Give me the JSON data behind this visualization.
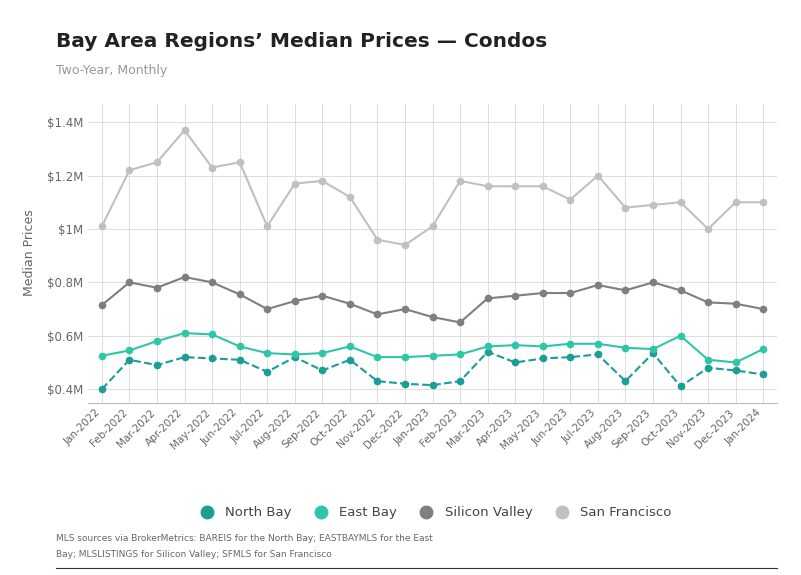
{
  "title": "Bay Area Regions’ Median Prices — Condos",
  "subtitle": "Two-Year, Monthly",
  "ylabel": "Median Prices",
  "footnote1": "MLS sources via BrokerMetrics: BAREIS for the North Bay; EASTBAYMLS for the East",
  "footnote2": "Bay; MLSLISTINGS for Silicon Valley; SFMLS for San Francisco",
  "months": [
    "Jan-2022",
    "Feb-2022",
    "Mar-2022",
    "Apr-2022",
    "May-2022",
    "Jun-2022",
    "Jul-2022",
    "Aug-2022",
    "Sep-2022",
    "Oct-2022",
    "Nov-2022",
    "Dec-2022",
    "Jan-2023",
    "Feb-2023",
    "Mar-2023",
    "Apr-2023",
    "May-2023",
    "Jun-2023",
    "Jul-2023",
    "Aug-2023",
    "Sep-2023",
    "Oct-2023",
    "Nov-2023",
    "Dec-2023",
    "Jan-2024"
  ],
  "north_bay": [
    0.4,
    0.51,
    0.49,
    0.52,
    0.515,
    0.51,
    0.465,
    0.52,
    0.47,
    0.51,
    0.43,
    0.42,
    0.415,
    0.43,
    0.54,
    0.5,
    0.515,
    0.52,
    0.53,
    0.43,
    0.535,
    0.41,
    0.48,
    0.47,
    0.455
  ],
  "east_bay": [
    0.525,
    0.545,
    0.58,
    0.61,
    0.605,
    0.56,
    0.535,
    0.53,
    0.535,
    0.56,
    0.52,
    0.52,
    0.525,
    0.53,
    0.56,
    0.565,
    0.56,
    0.57,
    0.57,
    0.555,
    0.55,
    0.6,
    0.51,
    0.5,
    0.55
  ],
  "silicon_valley": [
    0.715,
    0.8,
    0.78,
    0.82,
    0.8,
    0.755,
    0.7,
    0.73,
    0.75,
    0.72,
    0.68,
    0.7,
    0.67,
    0.65,
    0.74,
    0.75,
    0.76,
    0.76,
    0.79,
    0.77,
    0.8,
    0.77,
    0.725,
    0.72,
    0.7
  ],
  "san_francisco": [
    1.01,
    1.22,
    1.25,
    1.37,
    1.23,
    1.25,
    1.01,
    1.17,
    1.18,
    1.12,
    0.96,
    0.94,
    1.01,
    1.18,
    1.16,
    1.16,
    1.16,
    1.11,
    1.2,
    1.08,
    1.09,
    1.1,
    1.0,
    1.1,
    1.1
  ],
  "north_bay_color": "#1a9e96",
  "east_bay_color": "#2dc6a8",
  "silicon_valley_color": "#7f7f7f",
  "san_francisco_color": "#c0c0c0",
  "background_color": "#ffffff",
  "grid_color": "#dddddd",
  "ylim": [
    0.35,
    1.47
  ],
  "yticks": [
    0.4,
    0.6,
    0.8,
    1.0,
    1.2,
    1.4
  ],
  "ytick_labels": [
    "$0.4M",
    "$0.6M",
    "$0.8M",
    "$1M",
    "$1.2M",
    "$1.4M"
  ],
  "linewidth": 1.5,
  "marker_size": 4.5
}
